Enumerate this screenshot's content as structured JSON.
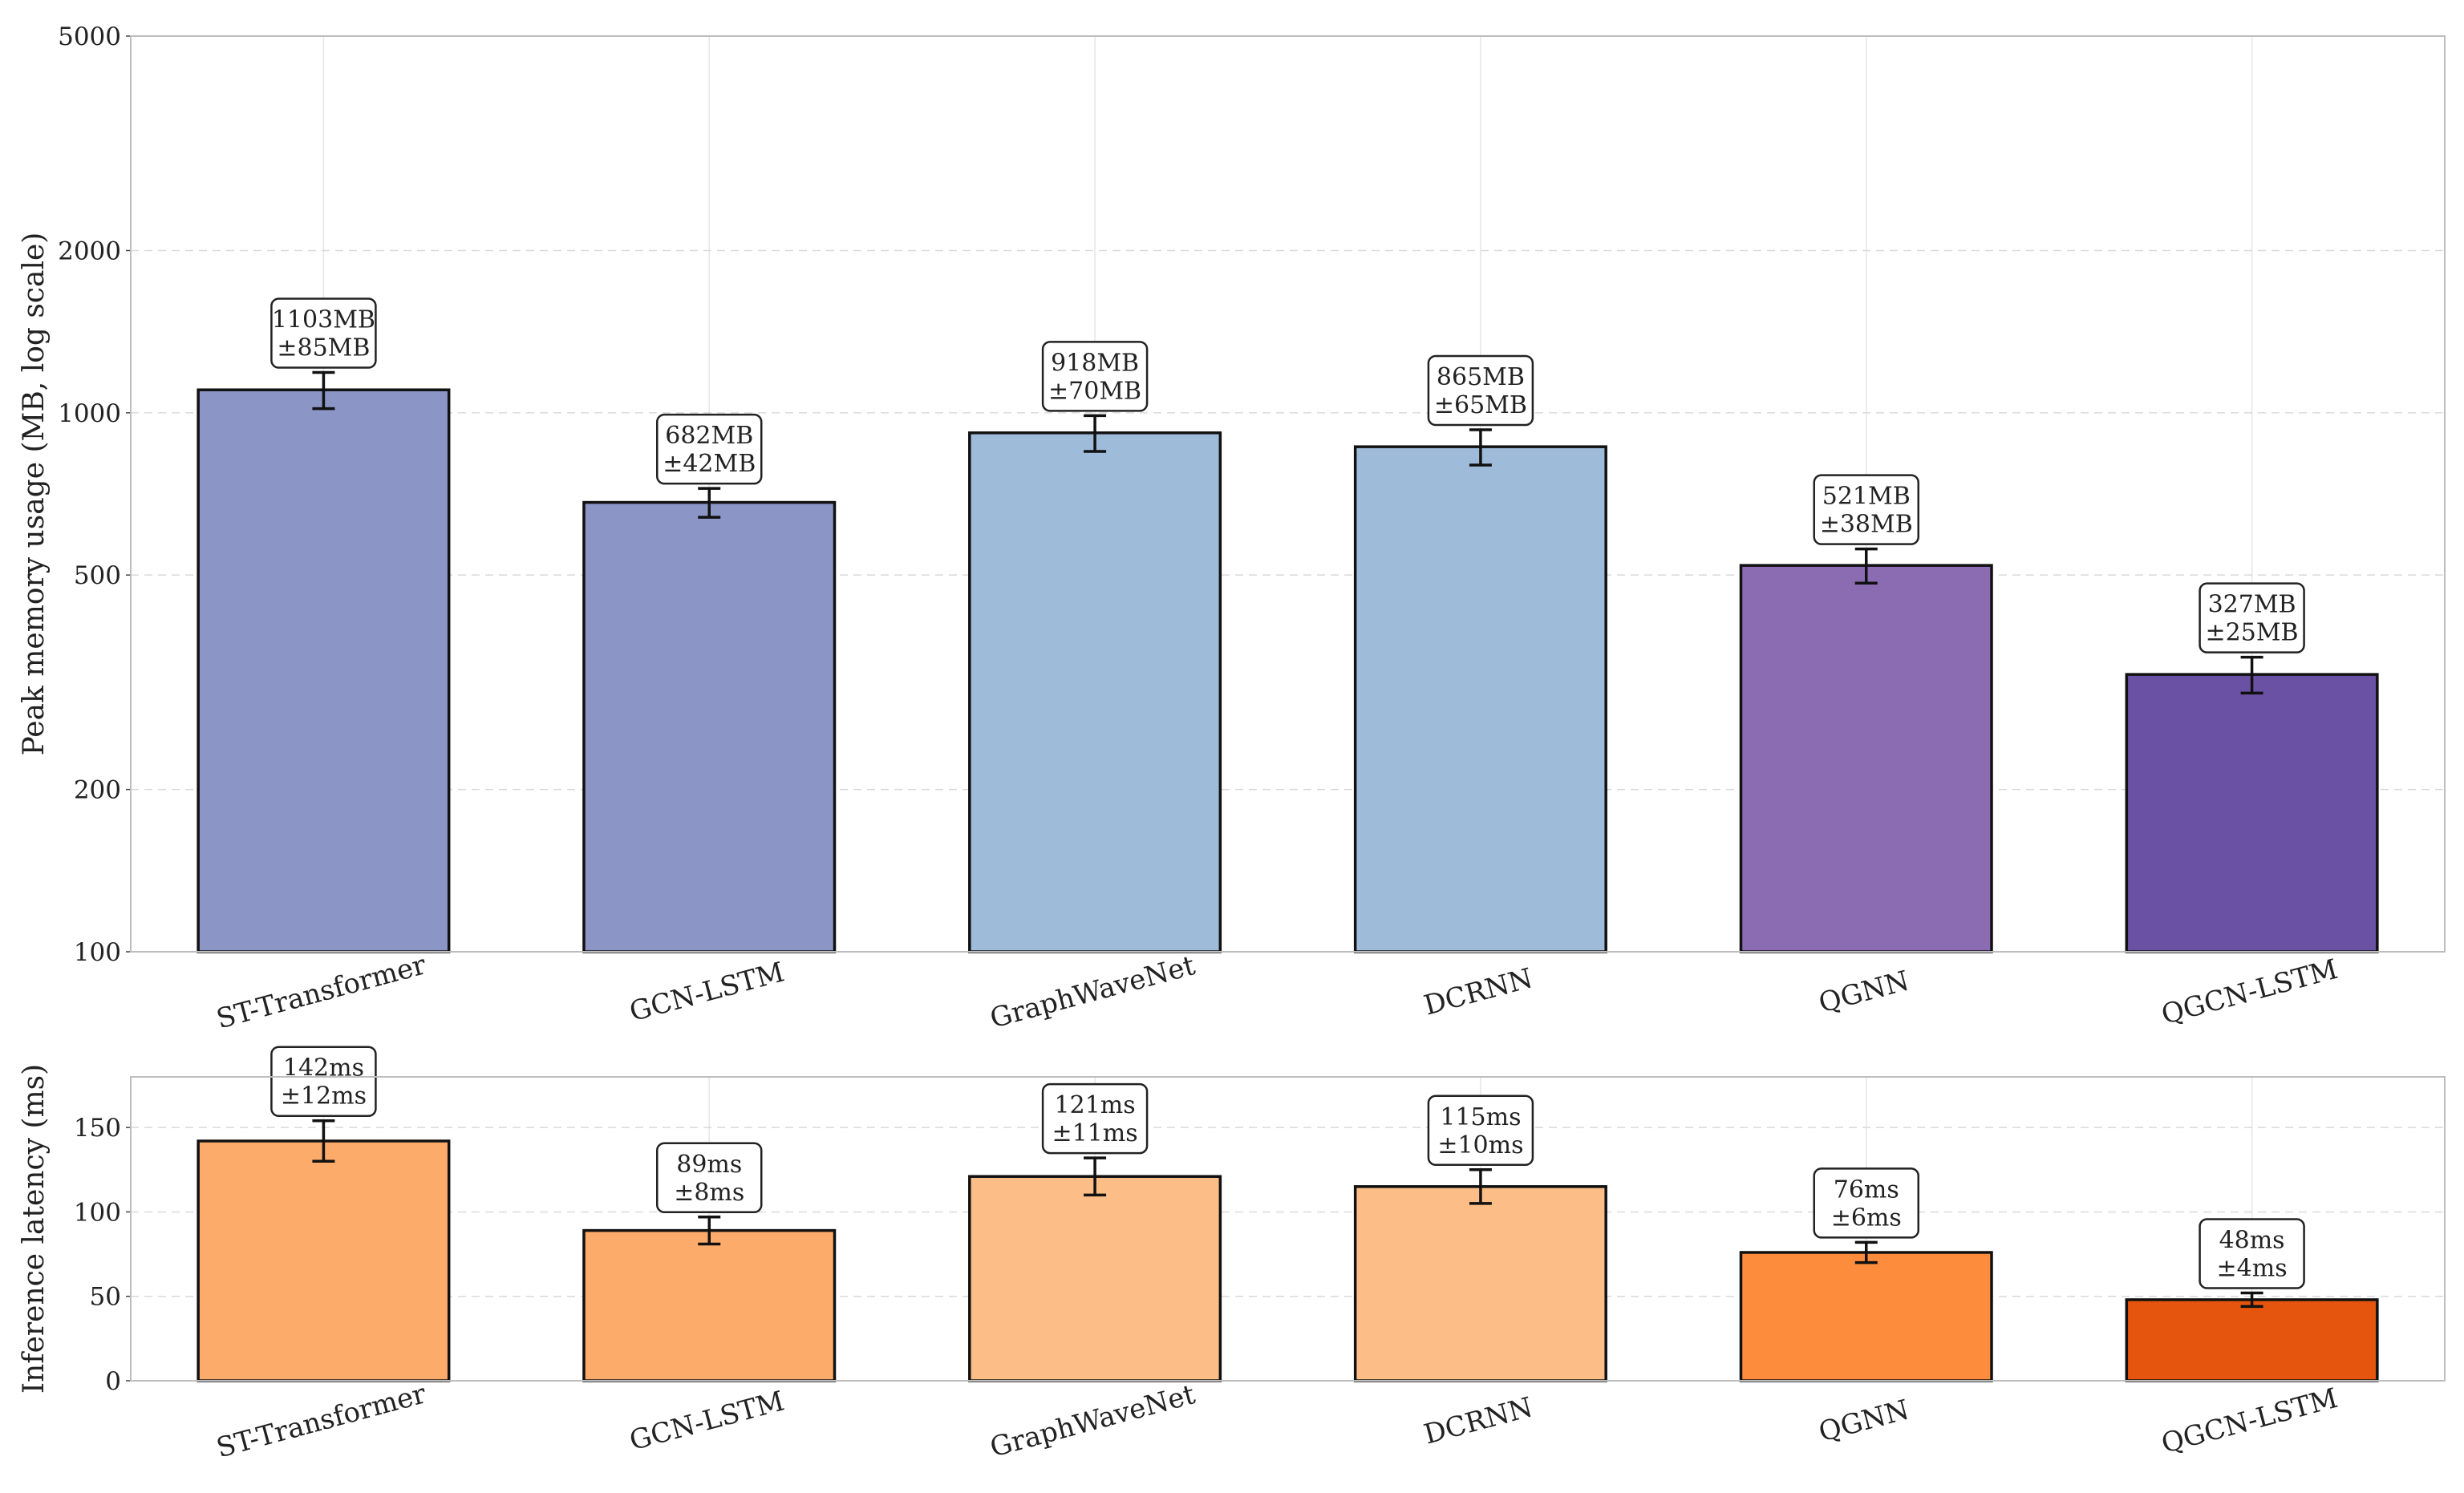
{
  "chart_data": [
    {
      "type": "bar",
      "ylabel": "Peak memory usage (MB, log scale)",
      "yscale": "log",
      "ylim": [
        100,
        5000
      ],
      "yticks": [
        100,
        200,
        500,
        1000,
        2000,
        5000
      ],
      "grid": true,
      "categories": [
        "ST-Transformer",
        "GCN-LSTM",
        "GraphWaveNet",
        "DCRNN",
        "QGNN",
        "QGCN-LSTM"
      ],
      "values": [
        1103,
        682,
        918,
        865,
        521,
        327
      ],
      "errors": [
        85,
        42,
        70,
        65,
        38,
        25
      ],
      "value_labels": [
        "1103MB\n±85MB",
        "682MB\n±42MB",
        "918MB\n±70MB",
        "865MB\n±65MB",
        "521MB\n±38MB",
        "327MB\n±25MB"
      ],
      "colors": [
        "#8b95c6",
        "#8b95c6",
        "#9ebbda",
        "#9ebbda",
        "#8b6bb1",
        "#6a51a3"
      ]
    },
    {
      "type": "bar",
      "ylabel": "Inference latency (ms)",
      "yscale": "linear",
      "ylim": [
        0,
        180
      ],
      "yticks": [
        0,
        50,
        100,
        150
      ],
      "grid": true,
      "categories": [
        "ST-Transformer",
        "GCN-LSTM",
        "GraphWaveNet",
        "DCRNN",
        "QGNN",
        "QGCN-LSTM"
      ],
      "values": [
        142,
        89,
        121,
        115,
        76,
        48
      ],
      "errors": [
        12,
        8,
        11,
        10,
        6,
        4
      ],
      "value_labels": [
        "142ms\n±12ms",
        "89ms\n±8ms",
        "121ms\n±11ms",
        "115ms\n±10ms",
        "76ms\n±6ms",
        "48ms\n±4ms"
      ],
      "colors": [
        "#fdab6a",
        "#fdab6a",
        "#fdbd86",
        "#fdbd86",
        "#fd8d3c",
        "#e6550d"
      ]
    }
  ]
}
